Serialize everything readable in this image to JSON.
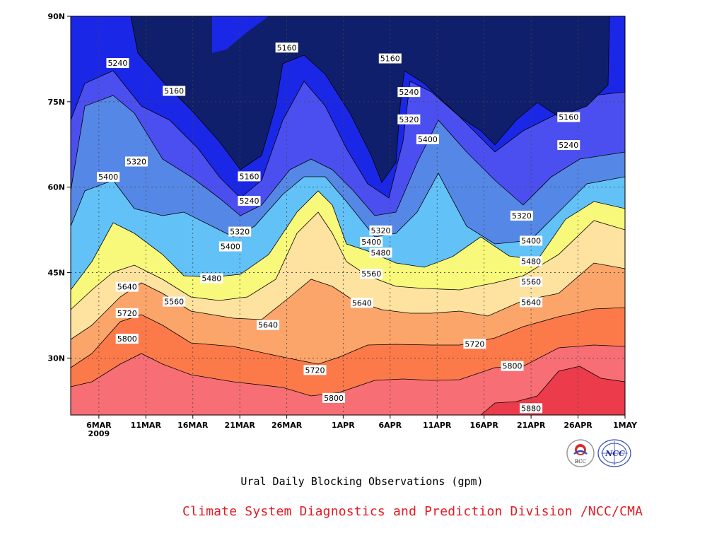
{
  "chart_data": {
    "type": "heatmap",
    "title": "Ural Daily Blocking Observations (gpm)",
    "x_start": "2009-03-03",
    "x_end": "2009-05-01",
    "x_tick_labels": [
      [
        "6MAR",
        "2009"
      ],
      [
        "11MAR",
        ""
      ],
      [
        "16MAR",
        ""
      ],
      [
        "21MAR",
        ""
      ],
      [
        "26MAR",
        ""
      ],
      [
        "1APR",
        ""
      ],
      [
        "6APR",
        ""
      ],
      [
        "11APR",
        ""
      ],
      [
        "16APR",
        ""
      ],
      [
        "21APR",
        ""
      ],
      [
        "26APR",
        ""
      ],
      [
        "1MAY",
        ""
      ]
    ],
    "y_tick_labels": [
      "90N",
      "75N",
      "60N",
      "45N",
      "30N"
    ],
    "ylim": [
      20,
      90
    ],
    "grid": true,
    "contour_levels": [
      5160,
      5240,
      5320,
      5400,
      5480,
      5560,
      5640,
      5720,
      5800,
      5880
    ],
    "fill_colors": [
      "#0f1f6c",
      "#1b27e6",
      "#4c4ff0",
      "#5588e6",
      "#62c2f8",
      "#f8f87a",
      "#fde2a0",
      "#fca56a",
      "#fc7a4a",
      "#f76e75",
      "#ec3b4b"
    ],
    "contour_labels": [
      {
        "value": "5160",
        "x": "2009-03-26",
        "y": 84.5
      },
      {
        "value": "5160",
        "x": "2009-04-06",
        "y": 82.6
      },
      {
        "value": "5160",
        "x": "2009-03-14",
        "y": 76.9
      },
      {
        "value": "5160",
        "x": "2009-03-22",
        "y": 61.9
      },
      {
        "value": "5160",
        "x": "2009-04-25",
        "y": 72.3
      },
      {
        "value": "5240",
        "x": "2009-03-08",
        "y": 81.8
      },
      {
        "value": "5240",
        "x": "2009-04-08",
        "y": 76.7
      },
      {
        "value": "5240",
        "x": "2009-03-22",
        "y": 57.6
      },
      {
        "value": "5240",
        "x": "2009-04-25",
        "y": 67.4
      },
      {
        "value": "5320",
        "x": "2009-03-10",
        "y": 64.5
      },
      {
        "value": "5320",
        "x": "2009-04-08",
        "y": 71.9
      },
      {
        "value": "5320",
        "x": "2009-03-21",
        "y": 52.2
      },
      {
        "value": "5320",
        "x": "2009-04-05",
        "y": 52.4
      },
      {
        "value": "5320",
        "x": "2009-04-20",
        "y": 55.0
      },
      {
        "value": "5400",
        "x": "2009-03-07",
        "y": 61.8
      },
      {
        "value": "5400",
        "x": "2009-04-10",
        "y": 68.4
      },
      {
        "value": "5400",
        "x": "2009-03-20",
        "y": 49.6
      },
      {
        "value": "5400",
        "x": "2009-04-04",
        "y": 50.4
      },
      {
        "value": "5400",
        "x": "2009-04-21",
        "y": 50.6
      },
      {
        "value": "5480",
        "x": "2009-03-18",
        "y": 44.0
      },
      {
        "value": "5480",
        "x": "2009-04-05",
        "y": 48.5
      },
      {
        "value": "5480",
        "x": "2009-04-21",
        "y": 47.0
      },
      {
        "value": "5560",
        "x": "2009-03-14",
        "y": 39.9
      },
      {
        "value": "5560",
        "x": "2009-04-04",
        "y": 44.8
      },
      {
        "value": "5560",
        "x": "2009-04-21",
        "y": 43.4
      },
      {
        "value": "5640",
        "x": "2009-03-09",
        "y": 42.5
      },
      {
        "value": "5640",
        "x": "2009-03-24",
        "y": 35.8
      },
      {
        "value": "5640",
        "x": "2009-04-03",
        "y": 39.7
      },
      {
        "value": "5640",
        "x": "2009-04-21",
        "y": 39.8
      },
      {
        "value": "5720",
        "x": "2009-03-09",
        "y": 37.9
      },
      {
        "value": "5720",
        "x": "2009-03-29",
        "y": 27.9
      },
      {
        "value": "5720",
        "x": "2009-04-15",
        "y": 32.5
      },
      {
        "value": "5800",
        "x": "2009-03-09",
        "y": 33.4
      },
      {
        "value": "5800",
        "x": "2009-03-31",
        "y": 23.0
      },
      {
        "value": "5800",
        "x": "2009-04-19",
        "y": 28.6
      },
      {
        "value": "5880",
        "x": "2009-04-21",
        "y": 21.2
      }
    ]
  },
  "caption": "Ural Daily Blocking Observations (gpm)",
  "credit": "Climate System Diagnostics and Prediction Division /NCC/CMA",
  "logos": {
    "bcc_text": "BCC",
    "ncc_text": "NCC"
  }
}
